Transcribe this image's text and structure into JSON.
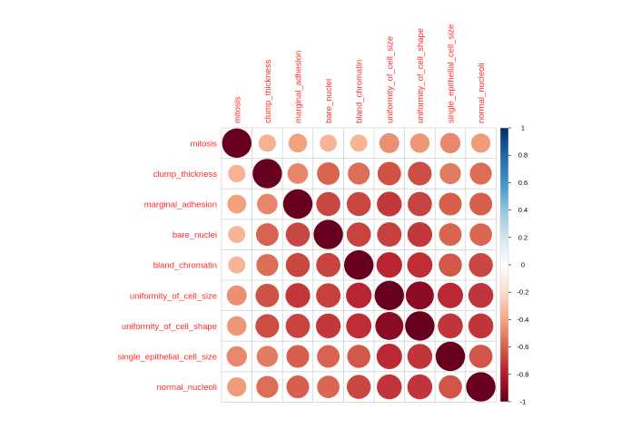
{
  "chart_data": {
    "type": "heatmap",
    "variables": [
      "mitosis",
      "clump_thickness",
      "marginal_adhesion",
      "bare_nuclei",
      "bland_chromatin",
      "uniformity_of_cell_size",
      "uniformity_of_cell_shape",
      "single_epithelial_cell_size",
      "normal_nucleoli"
    ],
    "matrix": [
      [
        1.0,
        0.35,
        0.41,
        0.34,
        0.34,
        0.46,
        0.44,
        0.48,
        0.43
      ],
      [
        0.35,
        1.0,
        0.49,
        0.59,
        0.56,
        0.64,
        0.65,
        0.52,
        0.56
      ],
      [
        0.41,
        0.49,
        1.0,
        0.67,
        0.67,
        0.71,
        0.68,
        0.6,
        0.6
      ],
      [
        0.34,
        0.59,
        0.67,
        1.0,
        0.68,
        0.69,
        0.71,
        0.59,
        0.58
      ],
      [
        0.34,
        0.56,
        0.67,
        0.68,
        1.0,
        0.76,
        0.74,
        0.62,
        0.67
      ],
      [
        0.46,
        0.64,
        0.71,
        0.69,
        0.76,
        1.0,
        0.91,
        0.75,
        0.72
      ],
      [
        0.44,
        0.65,
        0.68,
        0.71,
        0.74,
        0.91,
        1.0,
        0.72,
        0.72
      ],
      [
        0.48,
        0.52,
        0.6,
        0.59,
        0.62,
        0.75,
        0.72,
        1.0,
        0.63
      ],
      [
        0.43,
        0.56,
        0.6,
        0.58,
        0.67,
        0.72,
        0.72,
        0.63,
        1.0
      ]
    ],
    "colorbar": {
      "range": [
        -1,
        1
      ],
      "ticks": [
        "1",
        "0.8",
        "0.6",
        "0.4",
        "0.2",
        "0",
        "-0.2",
        "-0.4",
        "-0.6",
        "-0.8",
        "-1"
      ],
      "colors": [
        "#67001f",
        "#b2182b",
        "#d6604d",
        "#f4a582",
        "#fddbc7",
        "#ffffff",
        "#d1e5f0",
        "#92c5de",
        "#4393c3",
        "#2166ac",
        "#053061"
      ],
      "placement": "right"
    },
    "grid": true,
    "label_color": "#ff2a2a"
  }
}
